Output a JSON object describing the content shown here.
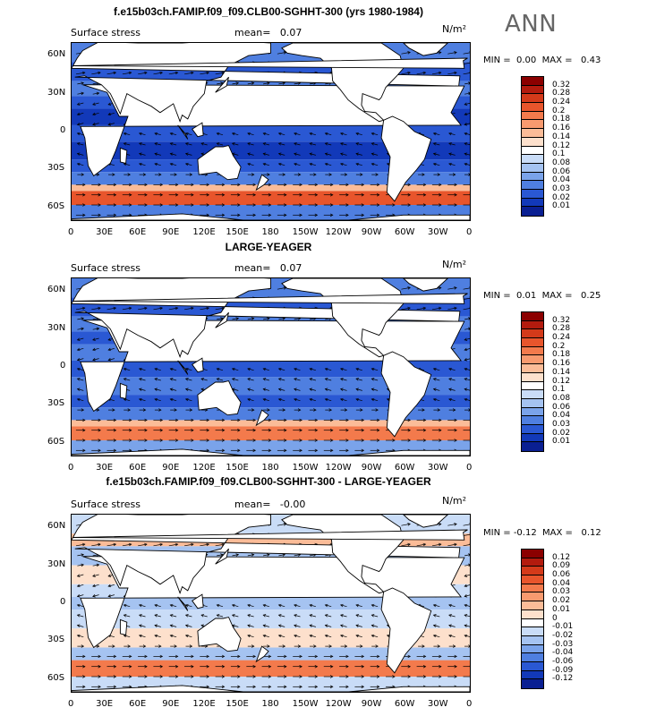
{
  "title": "f.e15b03ch.FAMIP.f09_f09.CLB00-SGHHT-300 (yrs 1980-1984)",
  "season": "ANN",
  "panels": [
    {
      "id": "p1",
      "title_left": "Surface stress",
      "mean_label": "mean=",
      "mean_value": "0.07",
      "units": "N/m²",
      "min_label": "MIN =",
      "min_value": "0.00",
      "max_label": "MAX =",
      "max_value": "0.43",
      "colorbar_labels": [
        "0.32",
        "0.28",
        "0.24",
        "0.2",
        "0.18",
        "0.16",
        "0.14",
        "0.12",
        "0.1",
        "0.08",
        "0.06",
        "0.04",
        "0.03",
        "0.02",
        "0.01"
      ],
      "colors": [
        "#8b0000",
        "#b31b0e",
        "#d43a1a",
        "#e8552c",
        "#f37a4c",
        "#f89a6f",
        "#fbbc98",
        "#fde0cc",
        "#ffffff",
        "#c9dcf7",
        "#a5c3f1",
        "#7aa3ea",
        "#4f7fe0",
        "#2a58d3",
        "#1239b9",
        "#0a1f92"
      ]
    },
    {
      "id": "p2",
      "header": "LARGE-YEAGER",
      "title_left": "Surface stress",
      "mean_label": "mean=",
      "mean_value": "0.07",
      "units": "N/m²",
      "min_label": "MIN =",
      "min_value": "0.01",
      "max_label": "MAX =",
      "max_value": "0.25",
      "colorbar_labels": [
        "0.32",
        "0.28",
        "0.24",
        "0.2",
        "0.18",
        "0.16",
        "0.14",
        "0.12",
        "0.1",
        "0.08",
        "0.06",
        "0.04",
        "0.03",
        "0.02",
        "0.01"
      ],
      "colors": [
        "#8b0000",
        "#b31b0e",
        "#d43a1a",
        "#e8552c",
        "#f37a4c",
        "#f89a6f",
        "#fbbc98",
        "#fde0cc",
        "#ffffff",
        "#c9dcf7",
        "#a5c3f1",
        "#7aa3ea",
        "#4f7fe0",
        "#2a58d3",
        "#1239b9",
        "#0a1f92"
      ]
    },
    {
      "id": "p3",
      "header": "f.e15b03ch.FAMIP.f09_f09.CLB00-SGHHT-300 - LARGE-YEAGER",
      "title_left": "Surface stress",
      "mean_label": "mean=",
      "mean_value": "-0.00",
      "units": "N/m²",
      "min_label": "MIN =",
      "min_value": "-0.12",
      "max_label": "MAX =",
      "max_value": "0.12",
      "colorbar_labels": [
        "0.12",
        "0.09",
        "0.06",
        "0.04",
        "0.03",
        "0.02",
        "0.01",
        "0",
        "-0.01",
        "-0.02",
        "-0.03",
        "-0.04",
        "-0.06",
        "-0.09",
        "-0.12"
      ],
      "colors": [
        "#8b0000",
        "#b31b0e",
        "#d43a1a",
        "#e8552c",
        "#f37a4c",
        "#f89a6f",
        "#fbbc98",
        "#fde0cc",
        "#ffffff",
        "#c9dcf7",
        "#a5c3f1",
        "#7aa3ea",
        "#4f7fe0",
        "#2a58d3",
        "#1239b9",
        "#0a1f92"
      ]
    }
  ],
  "chart_data": {
    "type": "heatmap",
    "x_tick_labels": [
      "0",
      "30E",
      "60E",
      "90E",
      "120E",
      "150E",
      "180",
      "150W",
      "120W",
      "90W",
      "60W",
      "30W",
      "0"
    ],
    "y_tick_labels": [
      "60N",
      "30N",
      "0",
      "30S",
      "60S"
    ],
    "xlim": [
      0,
      360
    ],
    "ylim": [
      -70,
      70
    ],
    "fields": [
      {
        "panel": "f.e15b03ch.FAMIP.f09_f09.CLB00-SGHHT-300 (yrs 1980-1984)",
        "variable": "Surface stress",
        "mean": 0.07,
        "min": 0.0,
        "max": 0.43
      },
      {
        "panel": "LARGE-YEAGER",
        "variable": "Surface stress",
        "mean": 0.07,
        "min": 0.01,
        "max": 0.25
      },
      {
        "panel": "f.e15b03ch.FAMIP.f09_f09.CLB00-SGHHT-300 - LARGE-YEAGER",
        "variable": "Surface stress",
        "mean": -0.0,
        "min": -0.12,
        "max": 0.12
      }
    ]
  }
}
